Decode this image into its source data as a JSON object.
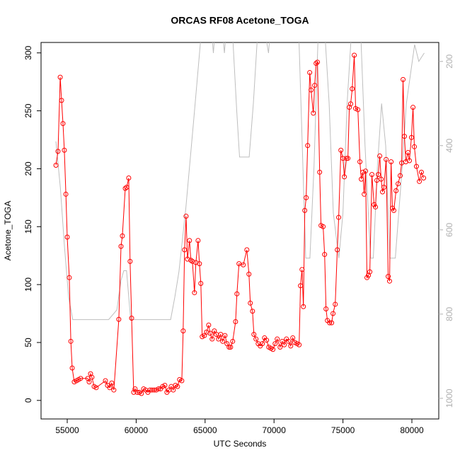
{
  "chart_data": {
    "type": "line",
    "title": "ORCAS RF08 Acetone_TOGA",
    "xlabel": "UTC Seconds",
    "ylabel": "Acetone_TOGA",
    "xlim": [
      53100,
      81950
    ],
    "xticks": [
      55000,
      60000,
      65000,
      70000,
      75000,
      80000
    ],
    "ylim": [
      -16,
      309
    ],
    "yticks": [
      0,
      50,
      100,
      150,
      200,
      250,
      300
    ],
    "y2lim": [
      1049,
      155
    ],
    "y2ticks": [
      200,
      400,
      600,
      800,
      1000
    ],
    "y2tick_color": "#b0b0b0",
    "series": [
      {
        "color": "#ff0000",
        "markers": true,
        "x": [
          54180,
          54330,
          54490,
          54590,
          54690,
          54790,
          54900,
          55000,
          55150,
          55260,
          55360,
          55510,
          55670,
          55820,
          55970,
          56490,
          56590,
          56690,
          56790,
          56950,
          57100,
          57770,
          57920,
          58080,
          58230,
          58380,
          58740,
          58900,
          59000,
          59210,
          59310,
          59460,
          59560,
          59670,
          59820,
          59920,
          60080,
          60230,
          60380,
          60540,
          60690,
          60850,
          61000,
          61150,
          61310,
          61460,
          61620,
          61770,
          61920,
          62080,
          62230,
          62380,
          62540,
          62690,
          62850,
          63000,
          63150,
          63310,
          63410,
          63510,
          63620,
          63720,
          63870,
          63970,
          64080,
          64230,
          64330,
          64490,
          64590,
          64690,
          64790,
          64950,
          65100,
          65260,
          65360,
          65510,
          65670,
          65820,
          65970,
          66130,
          66280,
          66440,
          66590,
          66740,
          66850,
          67000,
          67210,
          67310,
          67460,
          67770,
          68030,
          68180,
          68280,
          68440,
          68540,
          68690,
          68850,
          69000,
          69150,
          69310,
          69460,
          69620,
          69770,
          69920,
          70080,
          70230,
          70440,
          70590,
          70740,
          70900,
          71050,
          71210,
          71360,
          71510,
          71670,
          71820,
          71920,
          72030,
          72130,
          72230,
          72330,
          72440,
          72590,
          72690,
          72850,
          72950,
          73050,
          73150,
          73310,
          73410,
          73560,
          73670,
          73770,
          73870,
          74030,
          74180,
          74280,
          74440,
          74590,
          74690,
          74850,
          75000,
          75100,
          75260,
          75360,
          75460,
          75560,
          75670,
          75820,
          75920,
          76080,
          76230,
          76330,
          76440,
          76540,
          76640,
          76740,
          76850,
          76950,
          77100,
          77260,
          77360,
          77460,
          77560,
          77670,
          77770,
          77870,
          77970,
          78130,
          78280,
          78380,
          78490,
          78590,
          78690,
          78850,
          79000,
          79150,
          79260,
          79360,
          79460,
          79560,
          79720,
          79820,
          79970,
          80080,
          80180,
          80330,
          80540,
          80690,
          80850
        ],
        "values": [
          203,
          215,
          279,
          259,
          239,
          216,
          178,
          141,
          106,
          51,
          28,
          16,
          17,
          18,
          19,
          19,
          16,
          23,
          20,
          12,
          11,
          17,
          13,
          11,
          15,
          9,
          70,
          133,
          142,
          183,
          184,
          192,
          120,
          71,
          7,
          10,
          7,
          7,
          6,
          10,
          9,
          7,
          9,
          9,
          9,
          9,
          10,
          10,
          12,
          13,
          7,
          9,
          12,
          9,
          13,
          12,
          18,
          17,
          60,
          130,
          159,
          122,
          138,
          121,
          120,
          93,
          119,
          138,
          118,
          101,
          55,
          56,
          59,
          65,
          58,
          53,
          60,
          57,
          53,
          57,
          51,
          56,
          49,
          46,
          46,
          51,
          68,
          92,
          118,
          117,
          130,
          109,
          84,
          77,
          57,
          53,
          49,
          47,
          49,
          54,
          52,
          46,
          45,
          44,
          49,
          53,
          46,
          51,
          48,
          53,
          51,
          47,
          54,
          50,
          49,
          48,
          99,
          113,
          81,
          164,
          175,
          220,
          283,
          268,
          248,
          272,
          291,
          292,
          197,
          151,
          150,
          126,
          79,
          69,
          67,
          67,
          75,
          83,
          130,
          158,
          216,
          209,
          193,
          209,
          209,
          253,
          256,
          269,
          298,
          252,
          251,
          206,
          191,
          197,
          178,
          198,
          106,
          108,
          111,
          195,
          169,
          167,
          190,
          195,
          211,
          191,
          180,
          184,
          208,
          107,
          103,
          206,
          166,
          164,
          181,
          187,
          194,
          205,
          277,
          228,
          206,
          214,
          207,
          227,
          253,
          219,
          202,
          189,
          197,
          192
        ]
      },
      {
        "color": "#bebebe",
        "axis": "y2",
        "markers": false,
        "x": [
          54180,
          54500,
          54800,
          55100,
          55400,
          58000,
          58600,
          58900,
          59100,
          59300,
          59600,
          62500,
          62800,
          63100,
          63600,
          64200,
          64700,
          65500,
          65600,
          65700,
          66300,
          66400,
          66500,
          67000,
          67300,
          67500,
          68200,
          68500,
          68800,
          69400,
          69600,
          69700,
          71800,
          72000,
          72300,
          72600,
          72900,
          73200,
          73700,
          74000,
          74300,
          74700,
          75000,
          75300,
          75600,
          76300,
          76600,
          77000,
          77200,
          77500,
          77800,
          78100,
          78400,
          78800,
          79300,
          79600,
          80200,
          80500,
          80900
        ],
        "values": [
          390,
          500,
          640,
          760,
          813,
          813,
          790,
          720,
          697,
          697,
          813,
          813,
          760,
          700,
          550,
          330,
          140,
          140,
          180,
          140,
          140,
          180,
          140,
          140,
          320,
          427,
          427,
          300,
          140,
          140,
          180,
          140,
          140,
          350,
          667,
          667,
          450,
          140,
          140,
          300,
          560,
          667,
          560,
          300,
          140,
          140,
          400,
          667,
          667,
          450,
          300,
          400,
          667,
          667,
          450,
          300,
          160,
          200,
          180
        ]
      }
    ]
  }
}
